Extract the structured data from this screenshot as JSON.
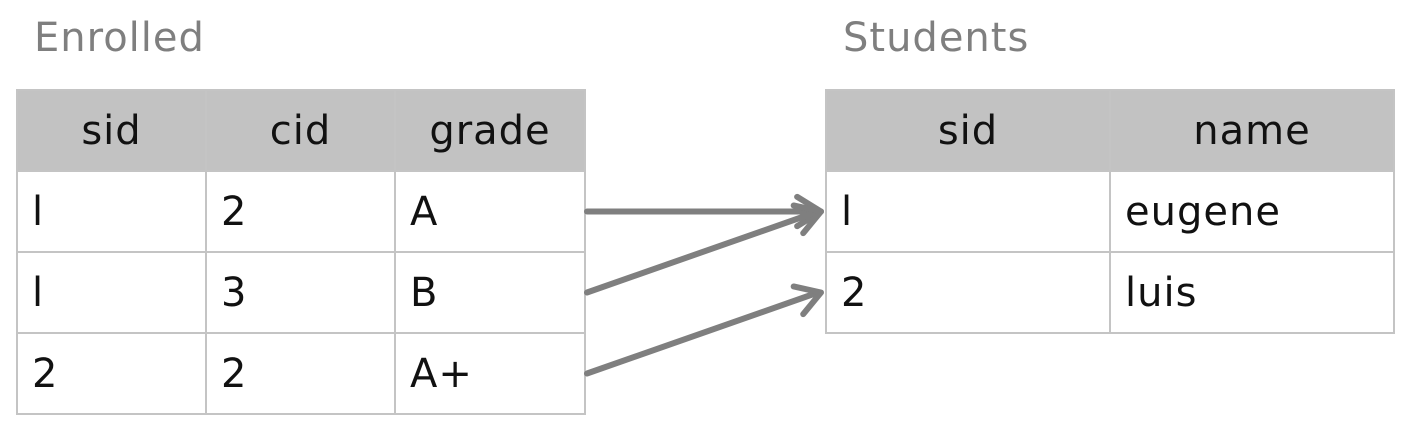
{
  "enrolled": {
    "title": "Enrolled",
    "columns": [
      "sid",
      "cid",
      "grade"
    ],
    "rows": [
      [
        "l",
        "2",
        "A"
      ],
      [
        "l",
        "3",
        "B"
      ],
      [
        "2",
        "2",
        "A+"
      ]
    ]
  },
  "students": {
    "title": "Students",
    "columns": [
      "sid",
      "name"
    ],
    "rows": [
      [
        "l",
        "eugene"
      ],
      [
        "2",
        "luis"
      ]
    ]
  },
  "links": [
    {
      "from_row": 0,
      "to_row": 0
    },
    {
      "from_row": 1,
      "to_row": 0
    },
    {
      "from_row": 2,
      "to_row": 1
    }
  ],
  "colors": {
    "header_fill": "#c2c2c2",
    "border": "#c4c4c4",
    "arrow": "#7f7f7f",
    "title": "#7f7f7f"
  }
}
